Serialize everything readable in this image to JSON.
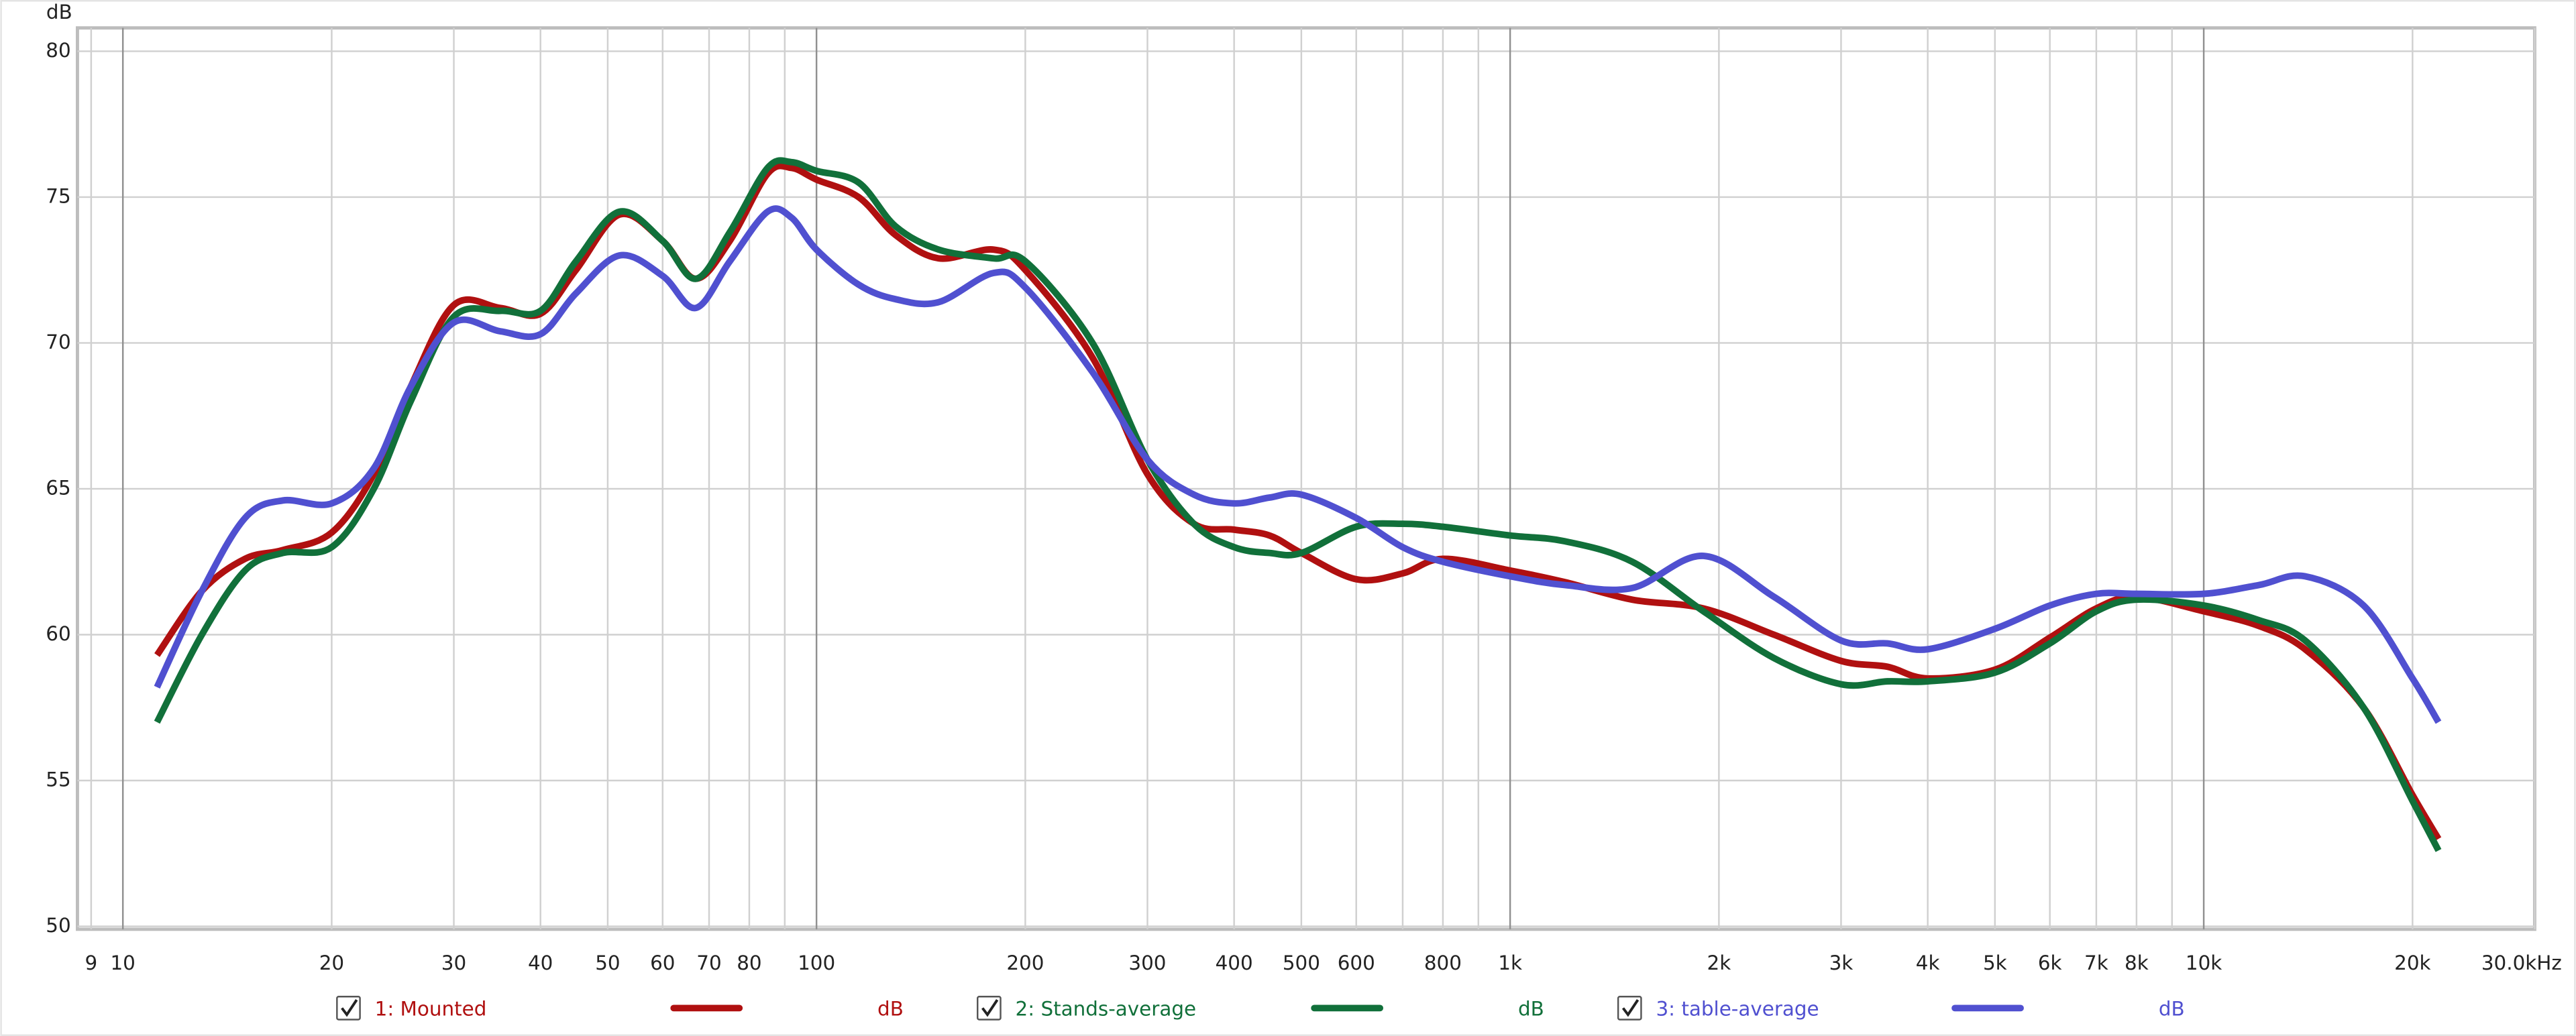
{
  "chart_data": {
    "type": "line",
    "y_label": "dB",
    "xscale": "log",
    "grid": true,
    "xlim": [
      8.6,
      30000
    ],
    "ylim": [
      49.9,
      80.8
    ],
    "xticks": [
      9,
      10,
      20,
      30,
      40,
      50,
      60,
      70,
      80,
      100,
      200,
      300,
      400,
      500,
      600,
      800,
      {
        "value": 1000,
        "label": "1k"
      },
      {
        "value": 2000,
        "label": "2k"
      },
      {
        "value": 3000,
        "label": "3k"
      },
      {
        "value": 4000,
        "label": "4k"
      },
      {
        "value": 5000,
        "label": "5k"
      },
      {
        "value": 6000,
        "label": "6k"
      },
      {
        "value": 7000,
        "label": "7k"
      },
      {
        "value": 8000,
        "label": "8k"
      },
      {
        "value": 10000,
        "label": "10k"
      },
      {
        "value": 20000,
        "label": "20k"
      },
      {
        "value": 30000,
        "label": "30.0kHz"
      }
    ],
    "minor_xticks": [
      90,
      700,
      900,
      9000
    ],
    "yticks": [
      50,
      55,
      60,
      65,
      70,
      75,
      80
    ],
    "x": [
      11.2,
      13,
      15,
      17,
      20,
      23,
      26,
      30,
      35,
      40,
      45,
      52,
      60,
      67,
      75,
      85,
      92,
      100,
      115,
      130,
      150,
      180,
      200,
      250,
      300,
      350,
      400,
      450,
      500,
      600,
      700,
      800,
      1000,
      1200,
      1500,
      1900,
      2400,
      3000,
      3500,
      4000,
      5000,
      6000,
      7000,
      8000,
      10000,
      12000,
      14000,
      17000,
      20000,
      21800
    ],
    "series": [
      {
        "name": "1: Mounted",
        "unit": "dB",
        "color": "#b01010",
        "values": [
          59.3,
          61.5,
          62.6,
          62.9,
          63.5,
          65.5,
          68.5,
          71.3,
          71.2,
          71.0,
          72.5,
          74.4,
          73.5,
          72.2,
          73.5,
          75.8,
          76.0,
          75.6,
          75.0,
          73.7,
          72.9,
          73.2,
          72.5,
          69.5,
          65.5,
          63.8,
          63.6,
          63.4,
          62.8,
          61.9,
          62.1,
          62.6,
          62.2,
          61.8,
          61.2,
          60.9,
          60.0,
          59.1,
          58.9,
          58.5,
          58.8,
          59.9,
          60.9,
          61.3,
          60.8,
          60.3,
          59.5,
          57.5,
          54.5,
          53.0
        ]
      },
      {
        "name": "2: Stands-average",
        "unit": "dB",
        "color": "#11703a",
        "values": [
          57.0,
          60.0,
          62.2,
          62.8,
          63.0,
          65.0,
          68.0,
          70.9,
          71.1,
          71.1,
          72.8,
          74.5,
          73.5,
          72.2,
          73.8,
          76.0,
          76.2,
          75.9,
          75.5,
          74.0,
          73.2,
          72.9,
          72.8,
          70.0,
          66.0,
          63.8,
          63.0,
          62.8,
          62.8,
          63.7,
          63.8,
          63.7,
          63.4,
          63.2,
          62.5,
          60.8,
          59.2,
          58.3,
          58.4,
          58.4,
          58.7,
          59.7,
          60.8,
          61.2,
          61.0,
          60.5,
          59.8,
          57.5,
          54.3,
          52.6
        ]
      },
      {
        "name": "3: table-average",
        "unit": "dB",
        "color": "#5050d0",
        "values": [
          58.2,
          61.5,
          64.0,
          64.6,
          64.5,
          65.7,
          68.5,
          70.7,
          70.4,
          70.3,
          71.7,
          73.0,
          72.3,
          71.2,
          72.8,
          74.5,
          74.3,
          73.2,
          72.0,
          71.5,
          71.4,
          72.4,
          71.9,
          69.0,
          66.0,
          64.8,
          64.5,
          64.7,
          64.8,
          64.0,
          63.0,
          62.5,
          62.0,
          61.7,
          61.6,
          62.7,
          61.3,
          59.8,
          59.7,
          59.5,
          60.2,
          61.0,
          61.4,
          61.4,
          61.4,
          61.7,
          62.0,
          61.0,
          58.5,
          57.0
        ]
      }
    ]
  }
}
